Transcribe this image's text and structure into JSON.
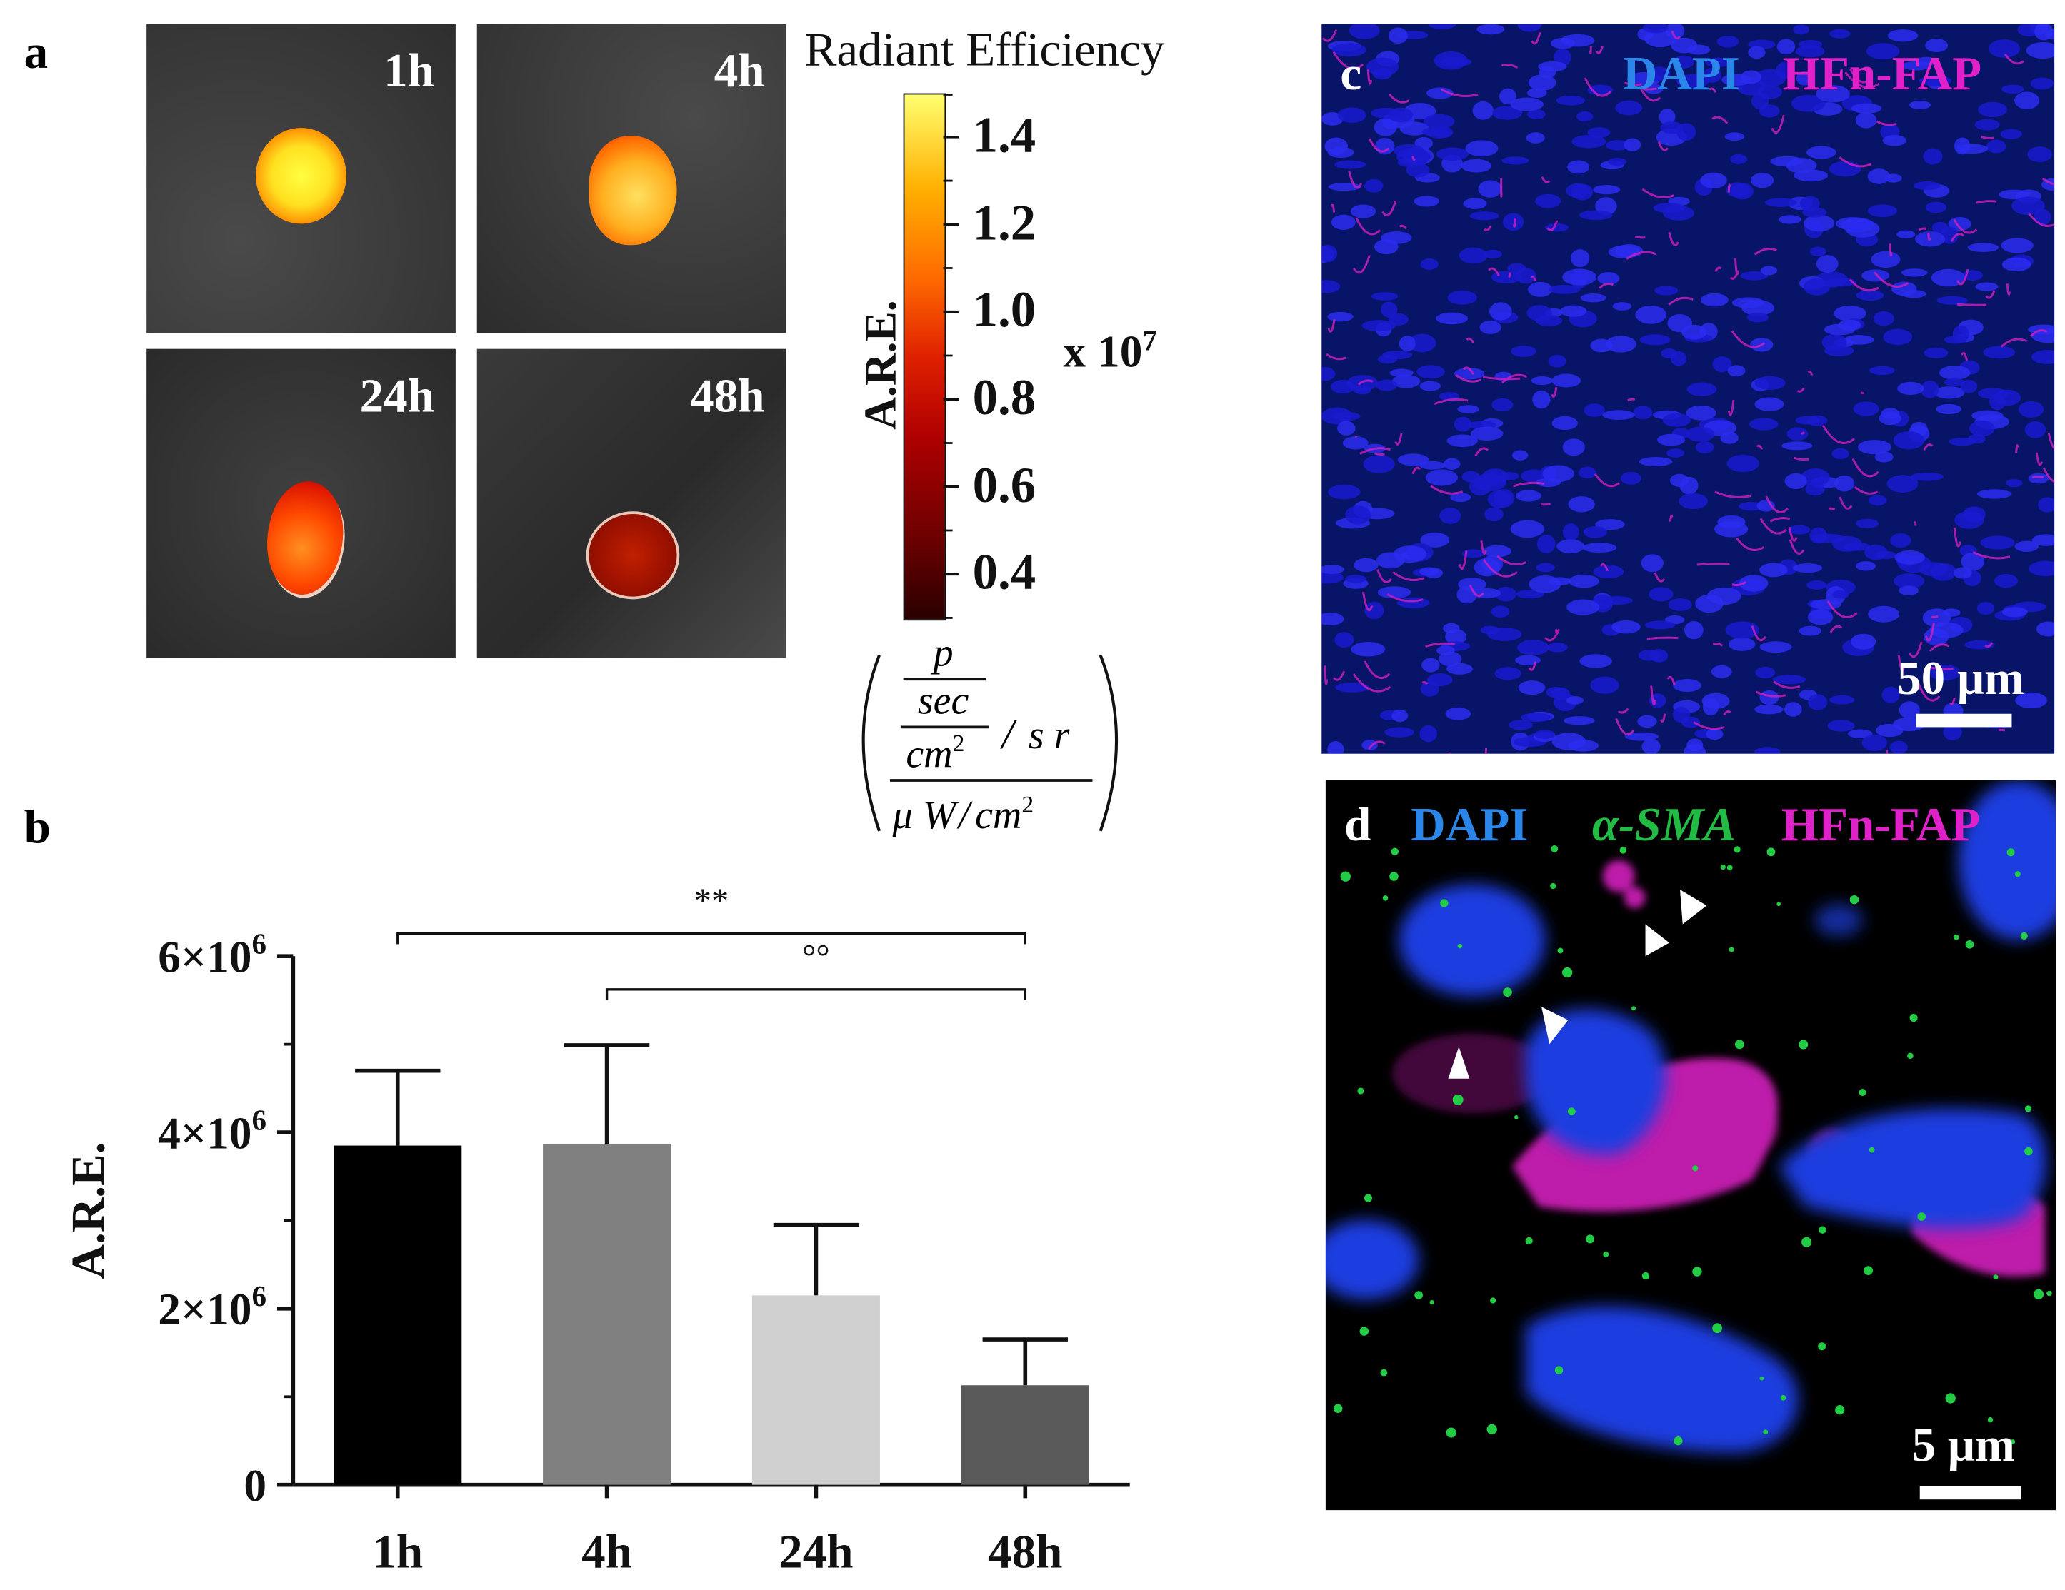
{
  "panels": {
    "a": {
      "letter": "a",
      "tiles": [
        {
          "label": "1h",
          "intensity": 1.45
        },
        {
          "label": "4h",
          "intensity": 1.35
        },
        {
          "label": "24h",
          "intensity": 0.95
        },
        {
          "label": "48h",
          "intensity": 0.6
        }
      ],
      "colorbar": {
        "title": "Radiant Efficiency",
        "axis_label": "A.R.E.",
        "ticks": [
          "1.4",
          "1.2",
          "1.0",
          "0.8",
          "0.6",
          "0.4"
        ],
        "tick_values": [
          1.4,
          1.2,
          1.0,
          0.8,
          0.6,
          0.4
        ],
        "range": [
          0.3,
          1.5
        ],
        "multiplier_base": "x 10",
        "multiplier_exp": "7",
        "units": {
          "p": "p",
          "sec": "sec",
          "cm2": "cm",
          "sr": "s r",
          "uW": "μ W",
          "slash": "/"
        }
      }
    },
    "b": {
      "letter": "b"
    },
    "c": {
      "letter": "c",
      "stain1": "DAPI",
      "stain2": "HFn-FAP",
      "scale_bar": "50 μm",
      "colors": {
        "dapi": "#1e6fd8",
        "fap": "#e020c8"
      }
    },
    "d": {
      "letter": "d",
      "stain1": "DAPI",
      "stain2": "α-SMA",
      "stain3": "HFn-FAP",
      "scale_bar": "5 μm",
      "colors": {
        "dapi": "#1e6fd8",
        "sma": "#22bb44",
        "fap": "#e020c8"
      }
    }
  },
  "chart_data": {
    "type": "bar",
    "categories": [
      "1h",
      "4h",
      "24h",
      "48h"
    ],
    "values": [
      3850000,
      3870000,
      2150000,
      1130000
    ],
    "errors": [
      850000,
      1120000,
      800000,
      520000
    ],
    "colors": [
      "#000000",
      "#808080",
      "#d0d0d0",
      "#5a5a5a"
    ],
    "ylabel": "A.R.E.",
    "ylim": [
      0,
      6000000
    ],
    "yticks": [
      {
        "value": 0,
        "base": "0",
        "exp": ""
      },
      {
        "value": 2000000,
        "base": "2×10",
        "exp": "6"
      },
      {
        "value": 4000000,
        "base": "4×10",
        "exp": "6"
      },
      {
        "value": 6000000,
        "base": "6×10",
        "exp": "6"
      }
    ],
    "significance": [
      {
        "from": "1h",
        "to": "48h",
        "label": "**"
      },
      {
        "from": "4h",
        "to": "48h",
        "label": "°°"
      }
    ]
  }
}
